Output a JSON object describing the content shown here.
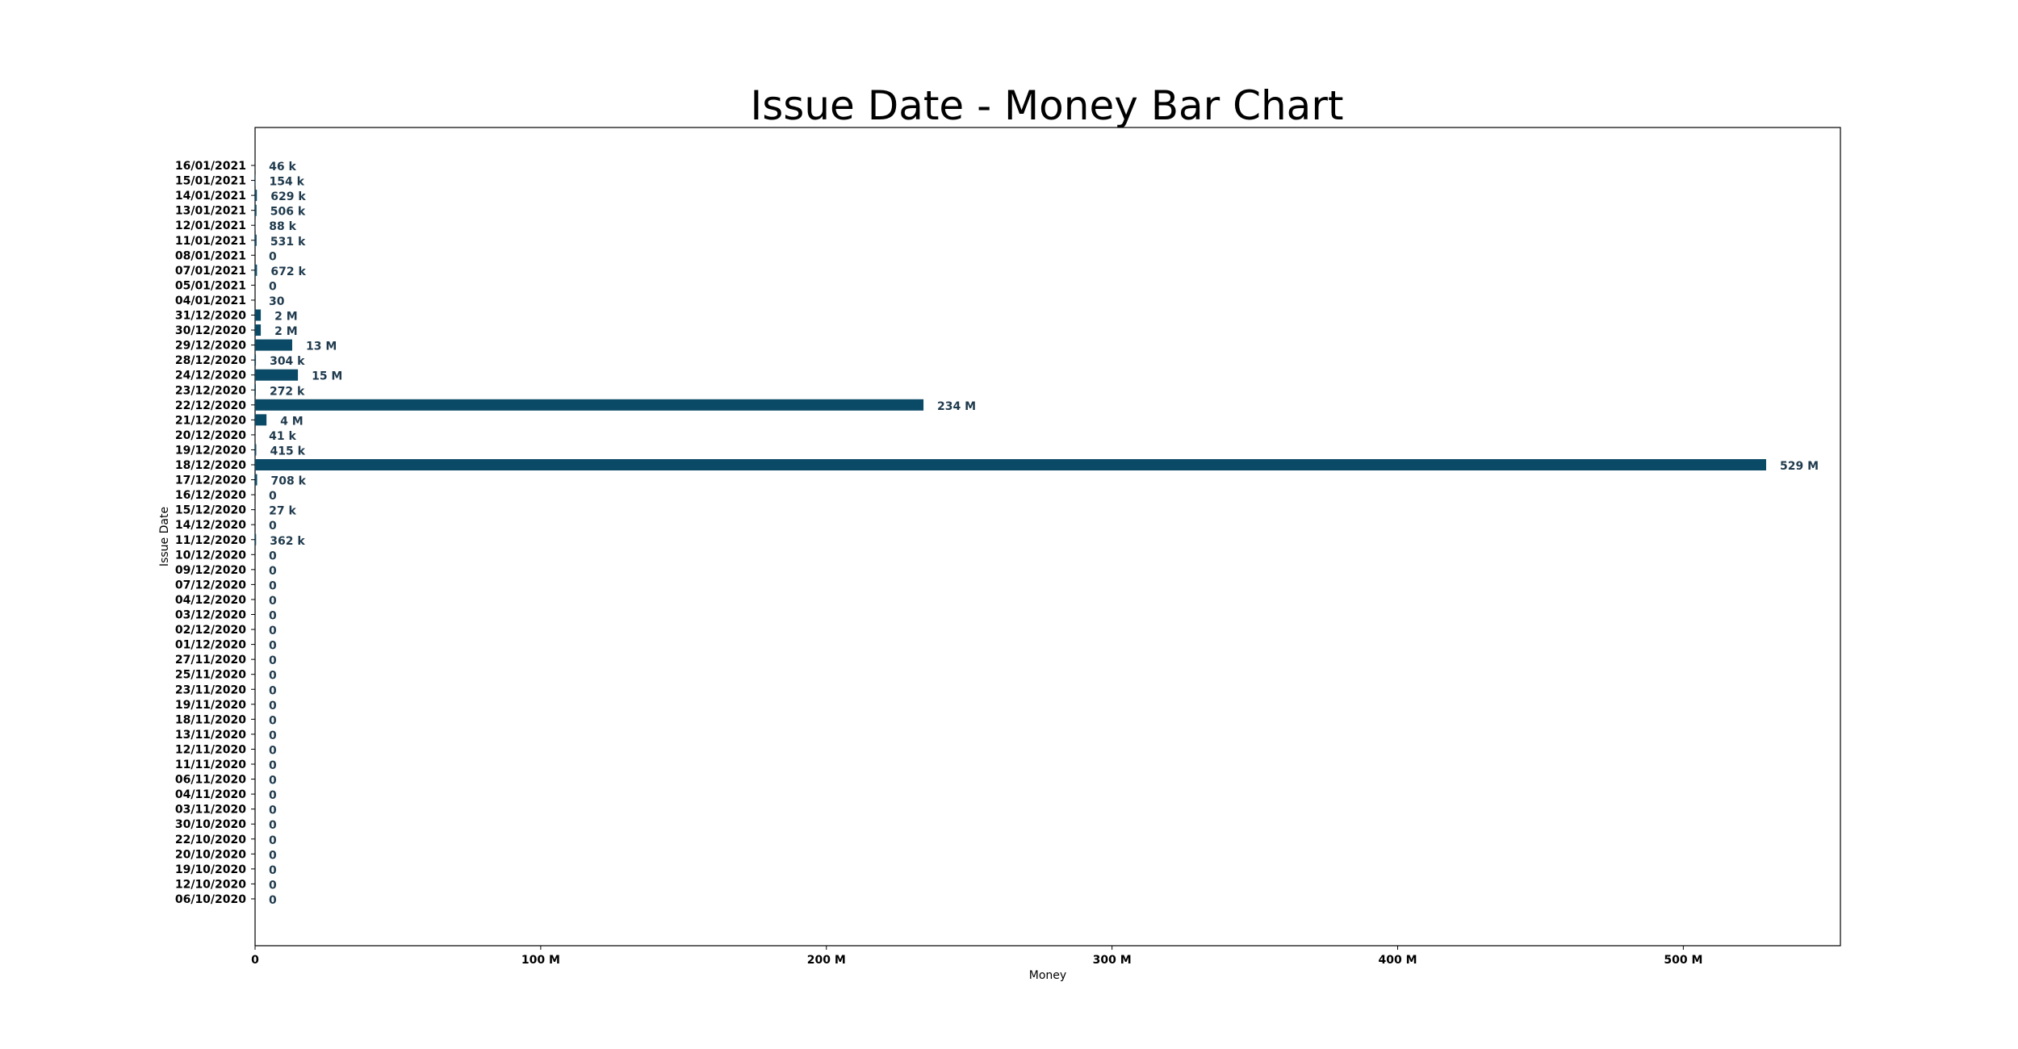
{
  "chart_data": {
    "type": "bar",
    "orientation": "horizontal",
    "title": "Issue Date - Money Bar Chart",
    "xlabel": "Money",
    "ylabel": "Issue Date",
    "xlim": [
      0,
      555000000
    ],
    "xticks": [
      0,
      100000000,
      200000000,
      300000000,
      400000000,
      500000000
    ],
    "xtick_labels": [
      "0",
      "100 M",
      "200 M",
      "300 M",
      "400 M",
      "500 M"
    ],
    "bar_color": "#0b4a66",
    "grid": false,
    "categories": [
      "16/01/2021",
      "15/01/2021",
      "14/01/2021",
      "13/01/2021",
      "12/01/2021",
      "11/01/2021",
      "08/01/2021",
      "07/01/2021",
      "05/01/2021",
      "04/01/2021",
      "31/12/2020",
      "30/12/2020",
      "29/12/2020",
      "28/12/2020",
      "24/12/2020",
      "23/12/2020",
      "22/12/2020",
      "21/12/2020",
      "20/12/2020",
      "19/12/2020",
      "18/12/2020",
      "17/12/2020",
      "16/12/2020",
      "15/12/2020",
      "14/12/2020",
      "11/12/2020",
      "10/12/2020",
      "09/12/2020",
      "07/12/2020",
      "04/12/2020",
      "03/12/2020",
      "02/12/2020",
      "01/12/2020",
      "27/11/2020",
      "25/11/2020",
      "23/11/2020",
      "19/11/2020",
      "18/11/2020",
      "13/11/2020",
      "12/11/2020",
      "11/11/2020",
      "06/11/2020",
      "04/11/2020",
      "03/11/2020",
      "30/10/2020",
      "22/10/2020",
      "20/10/2020",
      "19/10/2020",
      "12/10/2020",
      "06/10/2020"
    ],
    "values": [
      46000,
      154000,
      629000,
      506000,
      88000,
      531000,
      0,
      672000,
      0,
      30,
      2000000,
      2000000,
      13000000,
      304000,
      15000000,
      272000,
      234000000,
      4000000,
      41000,
      415000,
      529000000,
      708000,
      0,
      27000,
      0,
      362000,
      0,
      0,
      0,
      0,
      0,
      0,
      0,
      0,
      0,
      0,
      0,
      0,
      0,
      0,
      0,
      0,
      0,
      0,
      0,
      0,
      0,
      0,
      0,
      0
    ],
    "value_labels": [
      "46 k",
      "154 k",
      "629 k",
      "506 k",
      "88 k",
      "531 k",
      "0",
      "672 k",
      "0",
      "30",
      "2 M",
      "2 M",
      "13 M",
      "304 k",
      "15 M",
      "272 k",
      "234 M",
      "4 M",
      "41 k",
      "415 k",
      "529 M",
      "708 k",
      "0",
      "27 k",
      "0",
      "362 k",
      "0",
      "0",
      "0",
      "0",
      "0",
      "0",
      "0",
      "0",
      "0",
      "0",
      "0",
      "0",
      "0",
      "0",
      "0",
      "0",
      "0",
      "0",
      "0",
      "0",
      "0",
      "0",
      "0",
      "0"
    ]
  }
}
